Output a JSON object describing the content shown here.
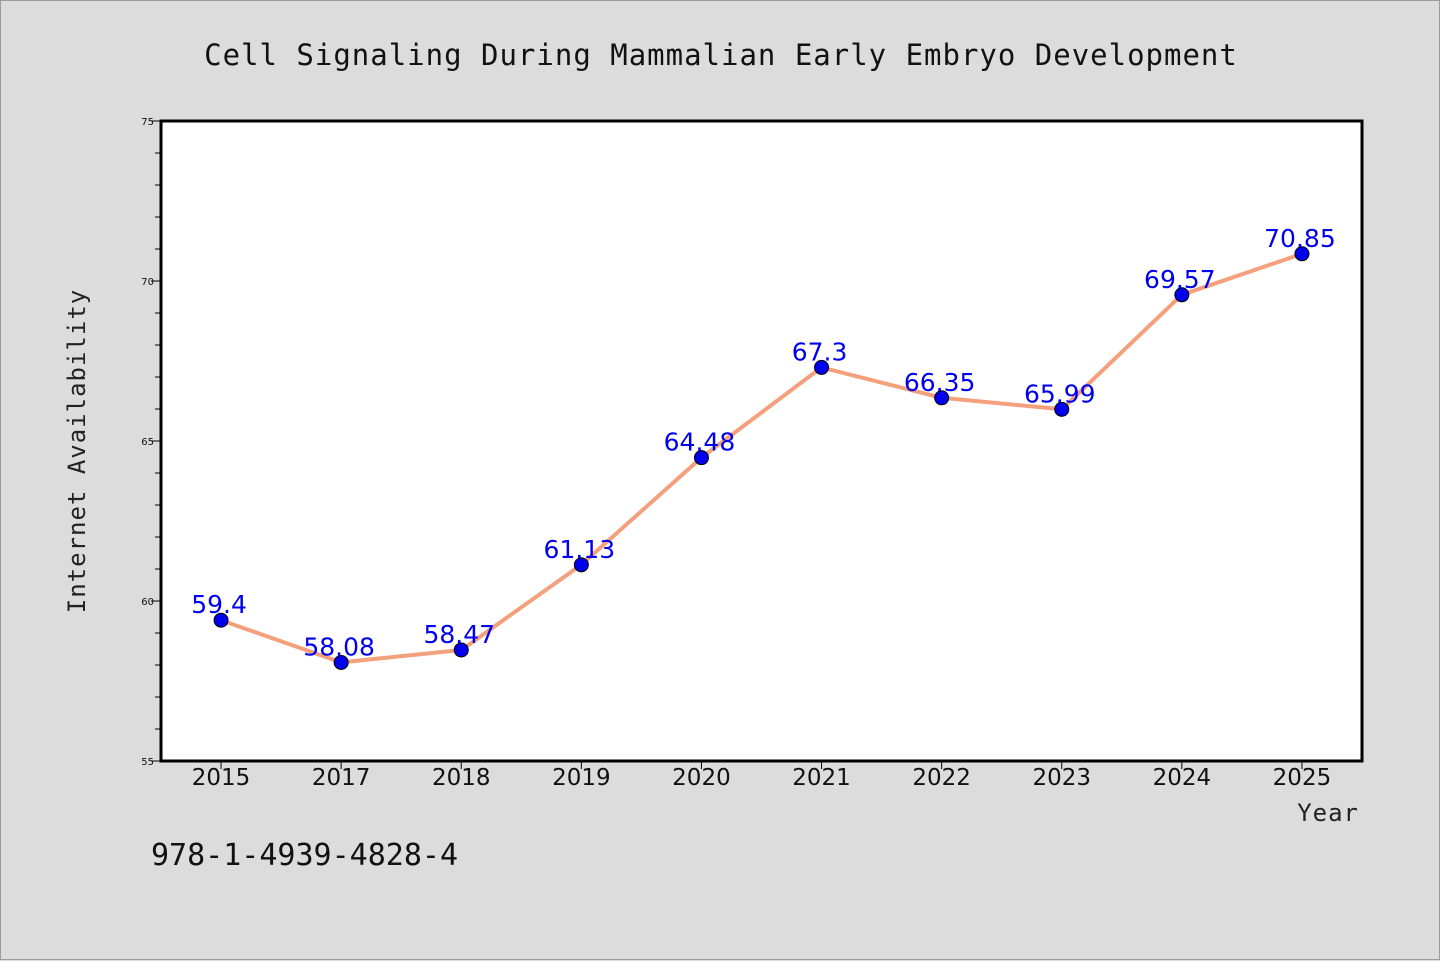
{
  "chart_data": {
    "type": "line",
    "title": "Cell Signaling During Mammalian Early Embryo Development",
    "xlabel": "Year",
    "ylabel": "Internet Availability",
    "categories": [
      "2015",
      "2017",
      "2018",
      "2019",
      "2020",
      "2021",
      "2022",
      "2023",
      "2024",
      "2025"
    ],
    "values": [
      59.4,
      58.08,
      58.47,
      61.13,
      64.48,
      67.3,
      66.35,
      65.99,
      69.57,
      70.85
    ],
    "data_labels": [
      "59.4",
      "58.08",
      "58.47",
      "61.13",
      "64.48",
      "67.3",
      "66.35",
      "65.99",
      "69.57",
      "70.85"
    ],
    "ylim": [
      55,
      75
    ],
    "yticks": [
      "55",
      "60",
      "65",
      "70",
      "75"
    ],
    "grid": false,
    "line_color": "#f4a07c",
    "marker_color": "#0000ee",
    "label_color": "#0000ee"
  },
  "footer": {
    "isbn": "978-1-4939-4828-4"
  }
}
